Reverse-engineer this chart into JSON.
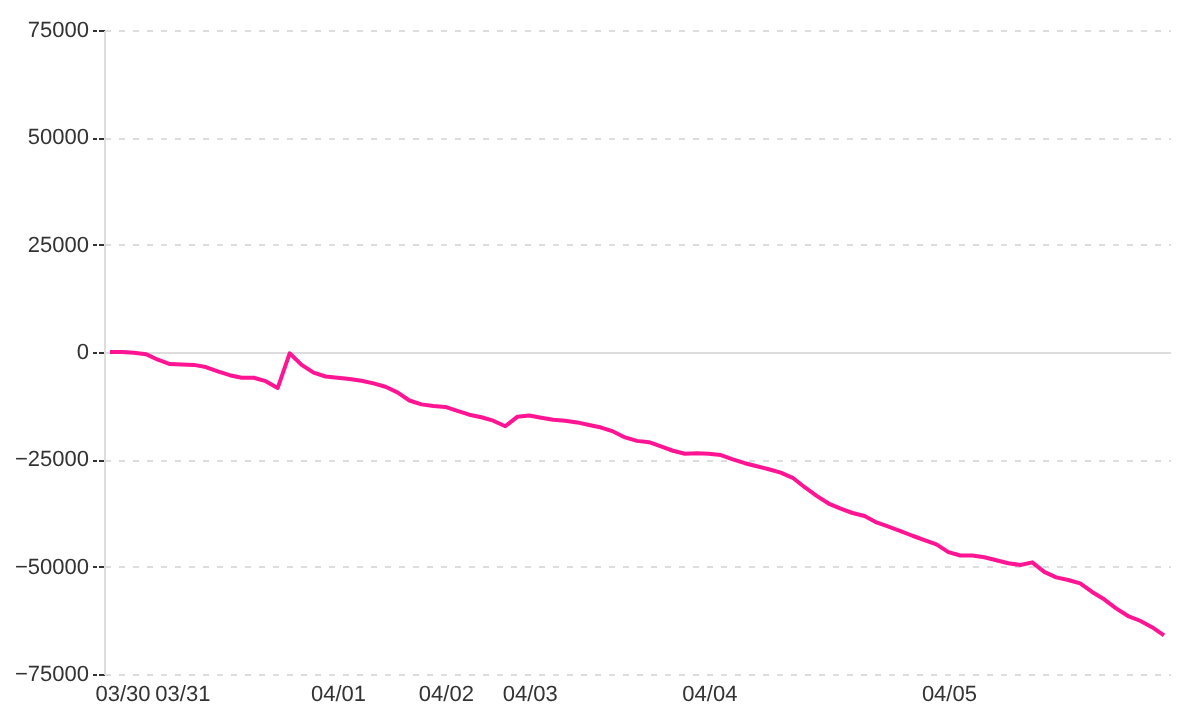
{
  "chart_data": {
    "type": "line",
    "categories": [
      null,
      "03/30",
      null,
      null,
      null,
      null,
      "03/31",
      null,
      null,
      null,
      null,
      null,
      null,
      null,
      null,
      null,
      null,
      null,
      null,
      "04/01",
      null,
      null,
      null,
      null,
      null,
      null,
      null,
      null,
      "04/02",
      null,
      null,
      null,
      null,
      null,
      null,
      "04/03",
      null,
      null,
      null,
      null,
      null,
      null,
      null,
      null,
      null,
      null,
      null,
      null,
      null,
      null,
      "04/04",
      null,
      null,
      null,
      null,
      null,
      null,
      null,
      null,
      null,
      null,
      null,
      null,
      null,
      null,
      null,
      null,
      null,
      null,
      null,
      "04/05",
      null,
      null,
      null,
      null,
      null,
      null,
      null,
      null,
      null,
      null,
      null,
      null,
      null,
      null,
      null,
      null,
      null,
      null
    ],
    "series": [
      {
        "color": "#ff1493",
        "values": [
          0,
          0,
          -200,
          -500,
          -1800,
          -2800,
          -2900,
          -3000,
          -3500,
          -4500,
          -5400,
          -6000,
          -6000,
          -6800,
          -8400,
          -300,
          -3000,
          -4800,
          -5700,
          -6000,
          -6300,
          -6700,
          -7300,
          -8100,
          -9400,
          -11300,
          -12200,
          -12600,
          -12800,
          -13700,
          -14600,
          -15200,
          -16000,
          -17300,
          -15100,
          -14800,
          -15300,
          -15800,
          -16000,
          -16400,
          -17000,
          -17600,
          -18500,
          -19900,
          -20700,
          -21000,
          -22000,
          -23000,
          -23700,
          -23600,
          -23700,
          -24000,
          -25000,
          -25900,
          -26600,
          -27300,
          -28100,
          -29300,
          -31500,
          -33500,
          -35300,
          -36500,
          -37500,
          -38200,
          -39700,
          -40700,
          -41700,
          -42800,
          -43800,
          -44800,
          -46600,
          -47400,
          -47400,
          -47800,
          -48500,
          -49200,
          -49600,
          -49000,
          -51200,
          -52500,
          -53100,
          -53900,
          -55900,
          -57600,
          -59700,
          -61500,
          -62600,
          -64100,
          -66000
        ]
      }
    ],
    "ylim": [
      -75000,
      75000
    ],
    "yticks": [
      -75000,
      -50000,
      -25000,
      0,
      25000,
      50000,
      75000
    ],
    "grid": "y"
  }
}
